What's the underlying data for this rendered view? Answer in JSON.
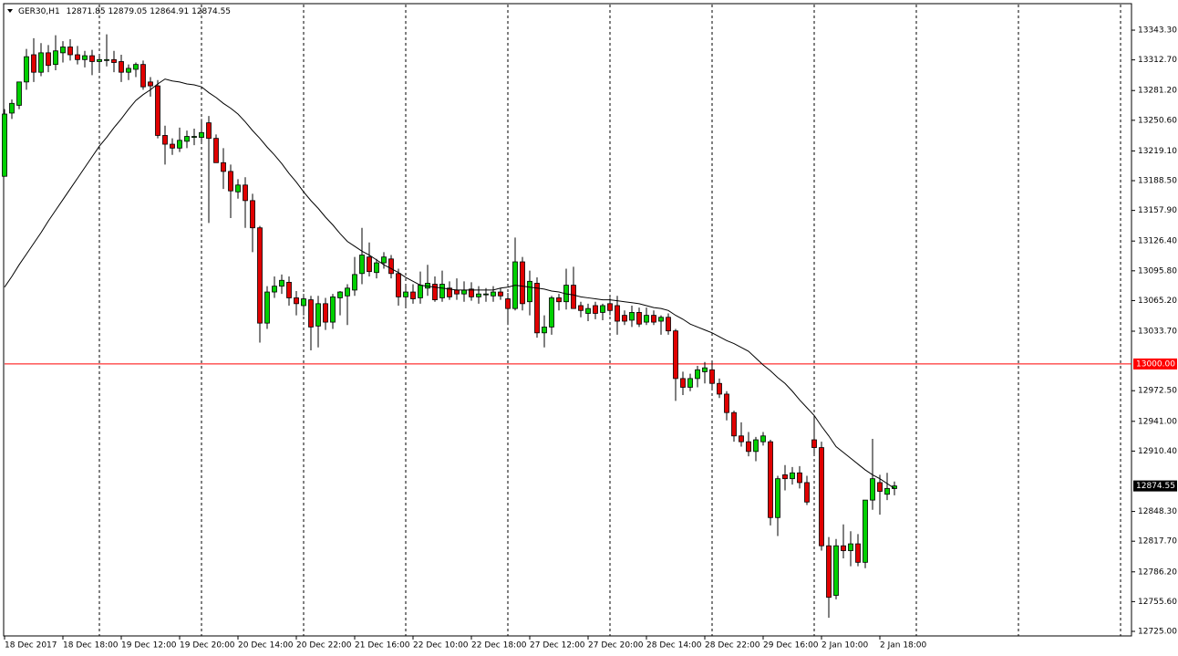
{
  "chart_data": {
    "type": "candlestick",
    "title": "GER30,H1",
    "categories": [
      "18 Dec 2017",
      null,
      null,
      null,
      null,
      null,
      null,
      null,
      "18 Dec 18:00",
      null,
      null,
      null,
      null,
      null,
      null,
      null,
      "19 Dec 12:00",
      null,
      null,
      null,
      null,
      null,
      null,
      null,
      "19 Dec 20:00",
      null,
      null,
      null,
      null,
      null,
      null,
      null,
      "20 Dec 14:00",
      null,
      null,
      null,
      null,
      null,
      null,
      null,
      "20 Dec 22:00",
      null,
      null,
      null,
      null,
      null,
      null,
      null,
      "21 Dec 16:00",
      null,
      null,
      null,
      null,
      null,
      null,
      null,
      "22 Dec 10:00",
      null,
      null,
      null,
      null,
      null,
      null,
      null,
      "22 Dec 18:00",
      null,
      null,
      null,
      null,
      null,
      null,
      null,
      "27 Dec 12:00",
      null,
      null,
      null,
      null,
      null,
      null,
      null,
      "27 Dec 20:00",
      null,
      null,
      null,
      null,
      null,
      null,
      null,
      "28 Dec 14:00",
      null,
      null,
      null,
      null,
      null,
      null,
      null,
      "28 Dec 22:00",
      null,
      null,
      null,
      null,
      null,
      null,
      null,
      "29 Dec 16:00",
      null,
      null,
      null,
      null,
      null,
      null,
      null,
      "2 Jan 10:00",
      null,
      null,
      null,
      null,
      null,
      null,
      null,
      "2 Jan 18:00",
      null,
      null
    ],
    "open": [
      13193,
      13258,
      13266,
      13290,
      13318,
      13300,
      13320,
      13308,
      13320,
      13326,
      13318,
      13313,
      13317,
      13311,
      13313,
      13313,
      13311,
      13300,
      13303,
      13308,
      13290,
      13286,
      13235,
      13226,
      13222,
      13229,
      13233,
      13233,
      13248,
      13232,
      13207,
      13198,
      13177,
      13184,
      13168,
      13140,
      13042,
      13074,
      13080,
      13084,
      13068,
      13060,
      13066,
      13039,
      13062,
      13043,
      13068,
      13070,
      13076,
      13093,
      13110,
      13094,
      13104,
      13108,
      13093,
      13069,
      13074,
      13068,
      13078,
      13082,
      13068,
      13078,
      13076,
      13072,
      13077,
      13069,
      13072,
      13070,
      13074,
      13067,
      13057,
      13105,
      13064,
      13083,
      13032,
      13038,
      13068,
      13064,
      13081,
      13060,
      13052,
      13060,
      13053,
      13062,
      13060,
      13050,
      13045,
      13053,
      13043,
      13050,
      13044,
      13048,
      13034,
      12985,
      12976,
      12985,
      12992,
      12994,
      12980,
      12969,
      12950,
      12926,
      12920,
      12910,
      12920,
      12920,
      12842,
      12886,
      12882,
      12888,
      12878,
      12922,
      12914,
      12813,
      12762,
      12813,
      12808,
      12815,
      12796,
      12860,
      12878,
      12866,
      12871.85
    ],
    "high": [
      13262,
      13272,
      13290,
      13324,
      13335,
      13330,
      13328,
      13338,
      13332,
      13334,
      13327,
      13322,
      13323,
      13318,
      13339,
      13322,
      13318,
      13308,
      13310,
      13312,
      13295,
      13292,
      13245,
      13232,
      13243,
      13240,
      13242,
      13252,
      13255,
      13236,
      13222,
      13205,
      13190,
      13192,
      13175,
      13142,
      13080,
      13090,
      13092,
      13090,
      13075,
      13072,
      13070,
      13070,
      13068,
      13072,
      13075,
      13082,
      13110,
      13140,
      13125,
      13108,
      13115,
      13112,
      13098,
      13080,
      13082,
      13095,
      13102,
      13090,
      13096,
      13085,
      13088,
      13085,
      13084,
      13080,
      13078,
      13080,
      13078,
      13073,
      13130,
      13110,
      13096,
      13089,
      13050,
      13070,
      13072,
      13098,
      13100,
      13064,
      13062,
      13064,
      13062,
      13068,
      13070,
      13055,
      13060,
      13058,
      13058,
      13055,
      13050,
      13052,
      13036,
      12992,
      12990,
      12998,
      13002,
      13002,
      12985,
      12972,
      12952,
      12940,
      12930,
      12925,
      12930,
      12922,
      12885,
      12896,
      12894,
      12895,
      12885,
      12945,
      12920,
      12822,
      12820,
      12835,
      12828,
      12825,
      12860,
      12923,
      12886,
      12888,
      12879.05
    ],
    "low": [
      13193,
      13252,
      13262,
      13282,
      13290,
      13296,
      13300,
      13302,
      13310,
      13312,
      13308,
      13305,
      13297,
      13302,
      13306,
      13300,
      13290,
      13292,
      13295,
      13282,
      13275,
      13232,
      13205,
      13215,
      13218,
      13222,
      13225,
      13226,
      13145,
      13212,
      13180,
      13150,
      13170,
      13140,
      13115,
      13022,
      13036,
      13068,
      13072,
      13060,
      13050,
      13050,
      13014,
      13017,
      13035,
      13036,
      13050,
      13040,
      13070,
      13082,
      13090,
      13088,
      13098,
      13088,
      13060,
      13060,
      13062,
      13062,
      13070,
      13064,
      13064,
      13066,
      13066,
      13064,
      13065,
      13062,
      13064,
      13064,
      13066,
      13040,
      13055,
      13055,
      13050,
      13027,
      13017,
      13030,
      13055,
      13056,
      13060,
      13048,
      13044,
      13046,
      13045,
      13050,
      13030,
      13040,
      13038,
      13038,
      13040,
      13040,
      13030,
      13030,
      12962,
      12968,
      12972,
      12976,
      12980,
      12975,
      12965,
      12942,
      12920,
      12915,
      12905,
      12900,
      12916,
      12834,
      12823,
      12870,
      12876,
      12872,
      12855,
      12908,
      12808,
      12739,
      12758,
      12800,
      12792,
      12792,
      12790,
      12850,
      12845,
      12860,
      12864.91
    ],
    "close": [
      13257,
      13268,
      13290,
      13316,
      13300,
      13320,
      13307,
      13322,
      13326,
      13318,
      13313,
      13317,
      13311,
      13313,
      13313,
      13310,
      13300,
      13304,
      13308,
      13285,
      13286,
      13235,
      13226,
      13222,
      13230,
      13234,
      13234,
      13238,
      13232,
      13207,
      13198,
      13178,
      13184,
      13168,
      13140,
      13042,
      13074,
      13080,
      13086,
      13068,
      13062,
      13067,
      13038,
      13062,
      13043,
      13069,
      13074,
      13078,
      13092,
      13112,
      13095,
      13104,
      13110,
      13093,
      13069,
      13074,
      13067,
      13081,
      13083,
      13066,
      13082,
      13069,
      13072,
      13076,
      13069,
      13072,
      13072,
      13074,
      13070,
      13057,
      13105,
      13062,
      13085,
      13032,
      13038,
      13068,
      13064,
      13081,
      13057,
      13055,
      13057,
      13052,
      13060,
      13055,
      13044,
      13044,
      13053,
      13041,
      13050,
      13043,
      13048,
      13034,
      12985,
      12976,
      12985,
      12994,
      12996,
      12980,
      12969,
      12950,
      12926,
      12920,
      12910,
      12922,
      12926,
      12842,
      12882,
      12882,
      12888,
      12878,
      12858,
      12914,
      12813,
      12760,
      12813,
      12808,
      12815,
      12796,
      12860,
      12882,
      12869,
      12872,
      12874.55
    ],
    "ma": [
      13079,
      13090,
      13102,
      13113,
      13124,
      13135,
      13147,
      13158,
      13169,
      13180,
      13191,
      13202,
      13213,
      13224,
      13233,
      13243,
      13252,
      13262,
      13271,
      13277,
      13282,
      13288,
      13293,
      13291,
      13290,
      13288,
      13287,
      13285,
      13279,
      13274,
      13268,
      13263,
      13257,
      13249,
      13240,
      13232,
      13223,
      13215,
      13206,
      13196,
      13187,
      13177,
      13168,
      13160,
      13151,
      13143,
      13134,
      13126,
      13121,
      13116,
      13112,
      13107,
      13102,
      13098,
      13094,
      13089,
      13085,
      13081,
      13080,
      13079,
      13078,
      13077,
      13076,
      13076,
      13076,
      13076,
      13076,
      13076,
      13078,
      13079,
      13081,
      13080,
      13079,
      13078,
      13077,
      13075,
      13074,
      13072,
      13071,
      13069,
      13068,
      13067,
      13066,
      13066,
      13065,
      13064,
      13063,
      13062,
      13060,
      13058,
      13057,
      13055,
      13050,
      13046,
      13041,
      13038,
      13035,
      13032,
      13028,
      13024,
      13021,
      13017,
      13013,
      13006,
      12999,
      12993,
      12986,
      12980,
      12972,
      12963,
      12955,
      12947,
      12936,
      12926,
      12915,
      12909,
      12903,
      12897,
      12891,
      12886,
      12882,
      12877,
      12872
    ],
    "bull_color": "#00d000",
    "bear_color": "#e00000",
    "ma_color": "#000000",
    "level": {
      "value": 13000,
      "label": "13000.00",
      "color": "#ff0000"
    },
    "ylim": [
      12720.3,
      13374.3
    ],
    "yticks": [
      {
        "value": 13343.3,
        "label": "13343.30"
      },
      {
        "value": 13312.7,
        "label": "13312.70"
      },
      {
        "value": 13281.2,
        "label": "13281.20"
      },
      {
        "value": 13250.6,
        "label": "13250.60"
      },
      {
        "value": 13219.1,
        "label": "13219.10"
      },
      {
        "value": 13188.5,
        "label": "13188.50"
      },
      {
        "value": 13157.9,
        "label": "13157.90"
      },
      {
        "value": 13126.4,
        "label": "13126.40"
      },
      {
        "value": 13095.8,
        "label": "13095.80"
      },
      {
        "value": 13065.2,
        "label": "13065.20"
      },
      {
        "value": 13033.7,
        "label": "13033.70"
      },
      {
        "value": 12972.5,
        "label": "12972.50"
      },
      {
        "value": 12941,
        "label": "12941.00"
      },
      {
        "value": 12910.4,
        "label": "12910.40"
      },
      {
        "value": 12848.3,
        "label": "12848.30"
      },
      {
        "value": 12817.7,
        "label": "12817.70"
      },
      {
        "value": 12786.2,
        "label": "12786.20"
      },
      {
        "value": 12755.6,
        "label": "12755.60"
      },
      {
        "value": 12725,
        "label": "12725.00"
      }
    ],
    "grid": false
  }
}
